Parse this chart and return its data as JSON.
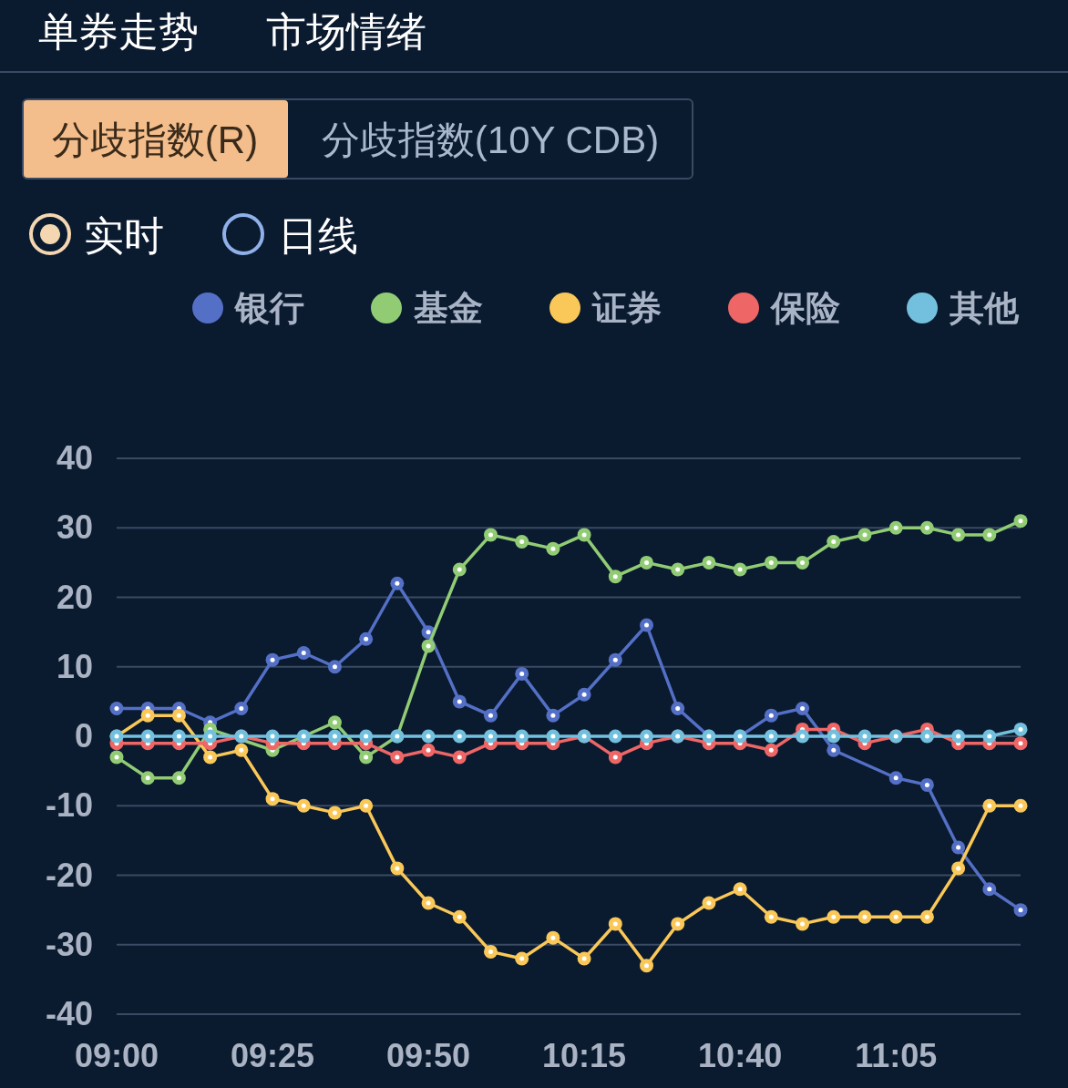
{
  "chart_data": {
    "type": "line",
    "annotations": [
      "单券走势",
      "市场情绪",
      "分歧指数(R)",
      "分歧指数(10Y CDB)",
      "实时",
      "日线"
    ],
    "categories": [
      "09:00",
      null,
      null,
      null,
      null,
      "09:25",
      null,
      null,
      null,
      null,
      "09:50",
      null,
      null,
      null,
      null,
      "10:15",
      null,
      null,
      null,
      null,
      "10:40",
      null,
      null,
      null,
      null,
      "11:05",
      null,
      null,
      null,
      null
    ],
    "series": [
      {
        "name": "银行",
        "color": "#5470c6",
        "values": [
          4,
          4,
          4,
          2,
          4,
          11,
          12,
          10,
          14,
          22,
          15,
          5,
          3,
          9,
          3,
          6,
          11,
          16,
          4,
          0,
          0,
          3,
          4,
          -2,
          null,
          -6,
          -7,
          -16,
          -22,
          -25
        ]
      },
      {
        "name": "基金",
        "color": "#91cc75",
        "values": [
          -3,
          -6,
          -6,
          1,
          null,
          -2,
          null,
          2,
          -3,
          0,
          13,
          24,
          29,
          28,
          27,
          29,
          23,
          25,
          24,
          25,
          24,
          25,
          25,
          28,
          29,
          30,
          30,
          29,
          29,
          31
        ]
      },
      {
        "name": "证券",
        "color": "#fac858",
        "values": [
          0,
          3,
          3,
          -3,
          -2,
          -9,
          -10,
          -11,
          -10,
          -19,
          -24,
          -26,
          -31,
          -32,
          -29,
          -32,
          -27,
          -33,
          -27,
          -24,
          -22,
          -26,
          -27,
          -26,
          -26,
          -26,
          -26,
          -19,
          -10,
          -10
        ]
      },
      {
        "name": "保险",
        "color": "#ee6666",
        "values": [
          -1,
          -1,
          -1,
          -1,
          0,
          -1,
          -1,
          -1,
          -1,
          -3,
          -2,
          -3,
          -1,
          -1,
          -1,
          0,
          -3,
          -1,
          0,
          -1,
          -1,
          -2,
          1,
          1,
          -1,
          0,
          1,
          -1,
          -1,
          -1
        ]
      },
      {
        "name": "其他",
        "color": "#73c0de",
        "values": [
          0,
          0,
          0,
          0,
          0,
          0,
          0,
          0,
          0,
          0,
          0,
          0,
          0,
          0,
          0,
          0,
          0,
          0,
          0,
          0,
          0,
          0,
          0,
          0,
          0,
          0,
          0,
          0,
          0,
          1
        ]
      }
    ],
    "ylim": [
      -40,
      40
    ],
    "yticks": [
      -40,
      -30,
      -20,
      -10,
      0,
      10,
      20,
      30,
      40
    ],
    "grid": "y",
    "legend": "top",
    "marker": "circle"
  }
}
